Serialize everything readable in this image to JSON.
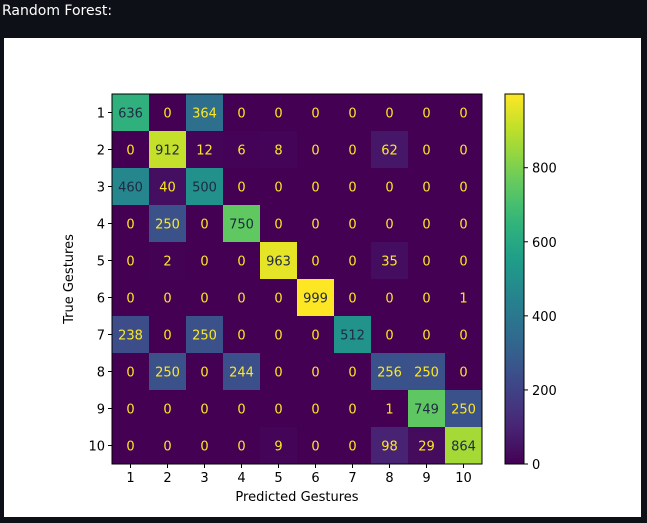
{
  "output": {
    "heading": "Random Forest:"
  },
  "chart_data": {
    "type": "heatmap",
    "title": "",
    "xlabel": "Predicted Gestures",
    "ylabel": "True Gestures",
    "x_categories": [
      "1",
      "2",
      "3",
      "4",
      "5",
      "6",
      "7",
      "8",
      "9",
      "10"
    ],
    "y_categories": [
      "1",
      "2",
      "3",
      "4",
      "5",
      "6",
      "7",
      "8",
      "9",
      "10"
    ],
    "matrix": [
      [
        636,
        0,
        364,
        0,
        0,
        0,
        0,
        0,
        0,
        0
      ],
      [
        0,
        912,
        12,
        6,
        8,
        0,
        0,
        62,
        0,
        0
      ],
      [
        460,
        40,
        500,
        0,
        0,
        0,
        0,
        0,
        0,
        0
      ],
      [
        0,
        250,
        0,
        750,
        0,
        0,
        0,
        0,
        0,
        0
      ],
      [
        0,
        2,
        0,
        0,
        963,
        0,
        0,
        35,
        0,
        0
      ],
      [
        0,
        0,
        0,
        0,
        0,
        999,
        0,
        0,
        0,
        1
      ],
      [
        238,
        0,
        250,
        0,
        0,
        0,
        512,
        0,
        0,
        0
      ],
      [
        0,
        250,
        0,
        244,
        0,
        0,
        0,
        256,
        250,
        0
      ],
      [
        0,
        0,
        0,
        0,
        0,
        0,
        0,
        1,
        749,
        250
      ],
      [
        0,
        0,
        0,
        0,
        9,
        0,
        0,
        98,
        29,
        864
      ]
    ],
    "colormap": "viridis",
    "color_range": [
      0,
      999
    ],
    "colorbar_ticks": [
      0,
      200,
      400,
      600,
      800
    ],
    "text_color_light": "#fde725",
    "text_color_dark": "#1f2a44"
  }
}
